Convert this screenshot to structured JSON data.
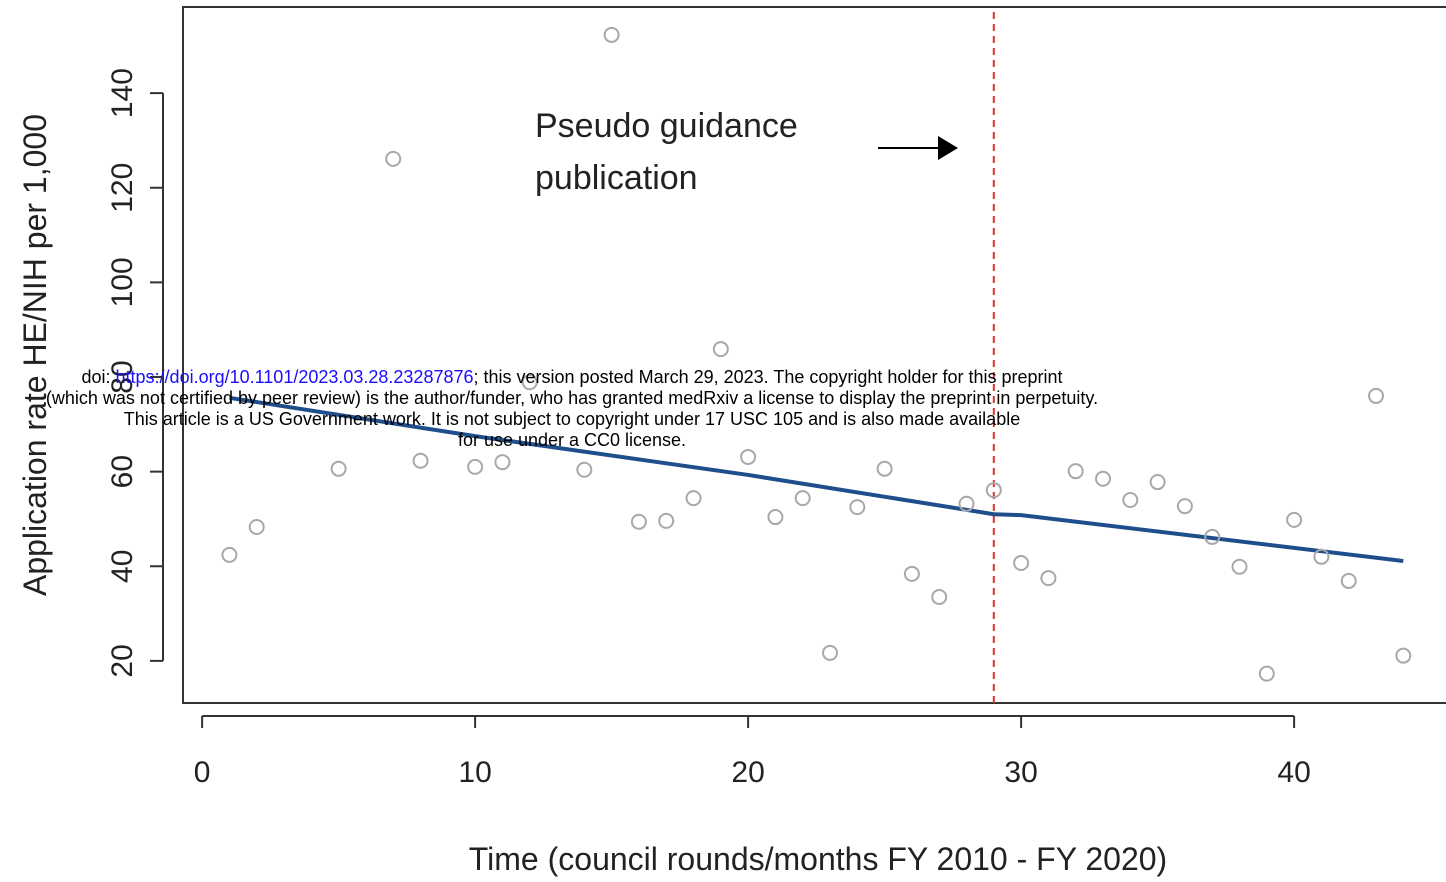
{
  "chart_data": {
    "type": "scatter",
    "x_label": "Time (council rounds/months FY 2010 - FY 2020)",
    "y_label": "Application rate HE/NIH per 1,000",
    "annotation": [
      "Pseudo guidance",
      "publication"
    ],
    "xlim": [
      -0.7,
      45.6
    ],
    "ylim": [
      11.1,
      158.2
    ],
    "xticks": [
      0,
      10,
      20,
      30,
      40
    ],
    "yticks": [
      20,
      40,
      60,
      80,
      100,
      120,
      140
    ],
    "vline": 29,
    "vline_color": "#e03030",
    "points": {
      "color": "#a8a8a8",
      "x": [
        1,
        2,
        5,
        7,
        8,
        10,
        11,
        12,
        14,
        15,
        16,
        17,
        18,
        19,
        20,
        21,
        22,
        23,
        24,
        25,
        26,
        27,
        28,
        29,
        30,
        31,
        32,
        33,
        34,
        35,
        36,
        37,
        38,
        39,
        40,
        41,
        42,
        43,
        44
      ],
      "values": [
        42.4,
        48.3,
        60.6,
        126.1,
        62.3,
        61,
        62,
        78.9,
        60.4,
        152.3,
        49.4,
        49.6,
        54.4,
        85.9,
        63.1,
        50.4,
        54.4,
        21.7,
        52.5,
        60.6,
        38.4,
        33.5,
        53.2,
        56.1,
        40.7,
        37.5,
        60.1,
        58.5,
        54,
        57.8,
        52.7,
        46.2,
        39.9,
        17.3,
        49.8,
        42,
        36.9,
        76,
        21.1
      ]
    },
    "trend": {
      "color": "#1f4e8c",
      "x": [
        1,
        10,
        20,
        29,
        30,
        44
      ],
      "values": [
        75.6,
        67.5,
        59.3,
        51,
        50.8,
        41.1
      ]
    }
  },
  "watermark": {
    "prefix": "doi: ",
    "url": "https://doi.org/10.1101/2023.03.28.23287876",
    "line1_rest": "; this version posted March 29, 2023. The copyright holder for this preprint",
    "line2": "(which was not certified by peer review) is the author/funder, who has granted medRxiv a license to display the preprint in perpetuity.",
    "line3": "This article is a US Government work. It is not subject to copyright under 17 USC 105 and is also made available",
    "line4": "for use under a CC0 license."
  }
}
